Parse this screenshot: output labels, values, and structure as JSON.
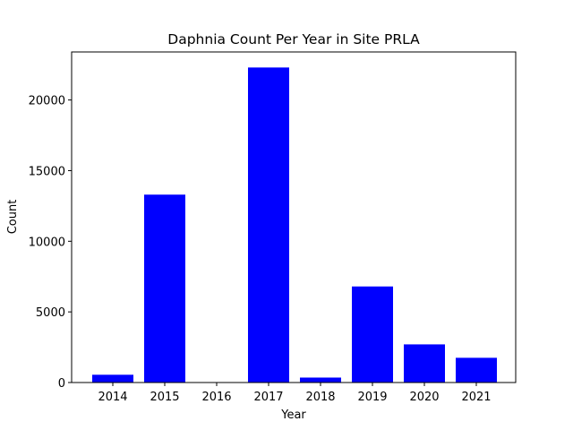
{
  "chart_data": {
    "type": "bar",
    "title": "Daphnia Count Per Year in Site PRLA",
    "xlabel": "Year",
    "ylabel": "Count",
    "categories": [
      "2014",
      "2015",
      "2016",
      "2017",
      "2018",
      "2019",
      "2020",
      "2021"
    ],
    "values": [
      550,
      13300,
      0,
      22300,
      350,
      6800,
      2700,
      1750
    ],
    "ylim": [
      0,
      23400
    ],
    "yticks": [
      0,
      5000,
      10000,
      15000,
      20000
    ],
    "bar_color": "#0000ff",
    "grid": false
  }
}
